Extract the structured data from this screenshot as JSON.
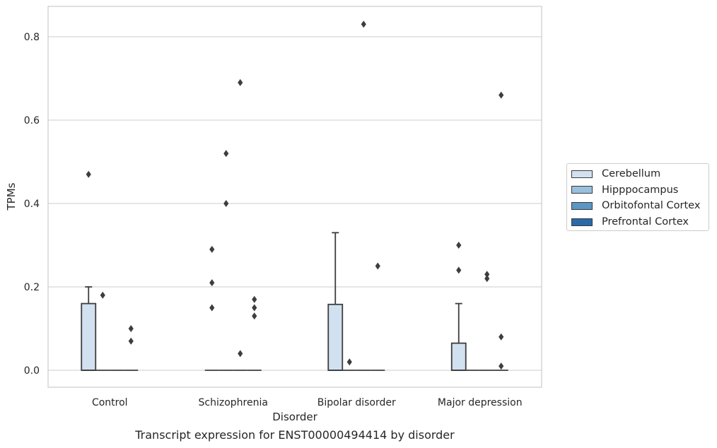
{
  "chart_data": {
    "type": "box",
    "title": "Transcript expression for ENST00000494414 by disorder",
    "xlabel": "Disorder",
    "ylabel": "TPMs",
    "categories": [
      "Control",
      "Schizophrenia",
      "Bipolar disorder",
      "Major depression"
    ],
    "ylim": [
      -0.04,
      0.875
    ],
    "yticks": [
      "0.0",
      "0.2",
      "0.4",
      "0.6",
      "0.8"
    ],
    "grid": true,
    "legend_position": "right",
    "series": [
      {
        "name": "Cerebellum",
        "color": "#d2e1f0",
        "boxes": [
          {
            "category": "Control",
            "q1": 0.0,
            "median": 0.0,
            "q3": 0.16,
            "whisker_low": 0.0,
            "whisker_high": 0.2,
            "outliers": [
              0.47
            ]
          },
          {
            "category": "Schizophrenia",
            "q1": 0.0,
            "median": 0.0,
            "q3": 0.0,
            "whisker_low": 0.0,
            "whisker_high": 0.0,
            "outliers": [
              0.29,
              0.21,
              0.15
            ]
          },
          {
            "category": "Bipolar disorder",
            "q1": 0.0,
            "median": 0.0,
            "q3": 0.158,
            "whisker_low": 0.0,
            "whisker_high": 0.33,
            "outliers": []
          },
          {
            "category": "Major depression",
            "q1": 0.0,
            "median": 0.0,
            "q3": 0.065,
            "whisker_low": 0.0,
            "whisker_high": 0.16,
            "outliers": [
              0.3,
              0.24
            ]
          }
        ]
      },
      {
        "name": "Hipppocampus",
        "color": "#9ac0dc",
        "boxes": [
          {
            "category": "Control",
            "q1": 0.0,
            "median": 0.0,
            "q3": 0.0,
            "whisker_low": 0.0,
            "whisker_high": 0.0,
            "outliers": [
              0.18
            ]
          },
          {
            "category": "Schizophrenia",
            "q1": 0.0,
            "median": 0.0,
            "q3": 0.0,
            "whisker_low": 0.0,
            "whisker_high": 0.0,
            "outliers": [
              0.52,
              0.4
            ]
          },
          {
            "category": "Bipolar disorder",
            "q1": 0.0,
            "median": 0.0,
            "q3": 0.0,
            "whisker_low": 0.0,
            "whisker_high": 0.0,
            "outliers": [
              0.02
            ]
          },
          {
            "category": "Major depression",
            "q1": 0.0,
            "median": 0.0,
            "q3": 0.0,
            "whisker_low": 0.0,
            "whisker_high": 0.0,
            "outliers": []
          }
        ]
      },
      {
        "name": "Orbitofontal Cortex",
        "color": "#5a97c4",
        "boxes": [
          {
            "category": "Control",
            "q1": 0.0,
            "median": 0.0,
            "q3": 0.0,
            "whisker_low": 0.0,
            "whisker_high": 0.0,
            "outliers": []
          },
          {
            "category": "Schizophrenia",
            "q1": 0.0,
            "median": 0.0,
            "q3": 0.0,
            "whisker_low": 0.0,
            "whisker_high": 0.0,
            "outliers": [
              0.69,
              0.04
            ]
          },
          {
            "category": "Bipolar disorder",
            "q1": 0.0,
            "median": 0.0,
            "q3": 0.0,
            "whisker_low": 0.0,
            "whisker_high": 0.0,
            "outliers": [
              0.83
            ]
          },
          {
            "category": "Major depression",
            "q1": 0.0,
            "median": 0.0,
            "q3": 0.0,
            "whisker_low": 0.0,
            "whisker_high": 0.0,
            "outliers": [
              0.23,
              0.22
            ]
          }
        ]
      },
      {
        "name": "Prefrontal Cortex",
        "color": "#2a6aa8",
        "boxes": [
          {
            "category": "Control",
            "q1": 0.0,
            "median": 0.0,
            "q3": 0.0,
            "whisker_low": 0.0,
            "whisker_high": 0.0,
            "outliers": [
              0.1,
              0.07
            ]
          },
          {
            "category": "Schizophrenia",
            "q1": 0.0,
            "median": 0.0,
            "q3": 0.0,
            "whisker_low": 0.0,
            "whisker_high": 0.0,
            "outliers": [
              0.17,
              0.15,
              0.13
            ]
          },
          {
            "category": "Bipolar disorder",
            "q1": 0.0,
            "median": 0.0,
            "q3": 0.0,
            "whisker_low": 0.0,
            "whisker_high": 0.0,
            "outliers": [
              0.25
            ]
          },
          {
            "category": "Major depression",
            "q1": 0.0,
            "median": 0.0,
            "q3": 0.0,
            "whisker_low": 0.0,
            "whisker_high": 0.0,
            "outliers": [
              0.66,
              0.08,
              0.01
            ]
          }
        ]
      }
    ]
  }
}
